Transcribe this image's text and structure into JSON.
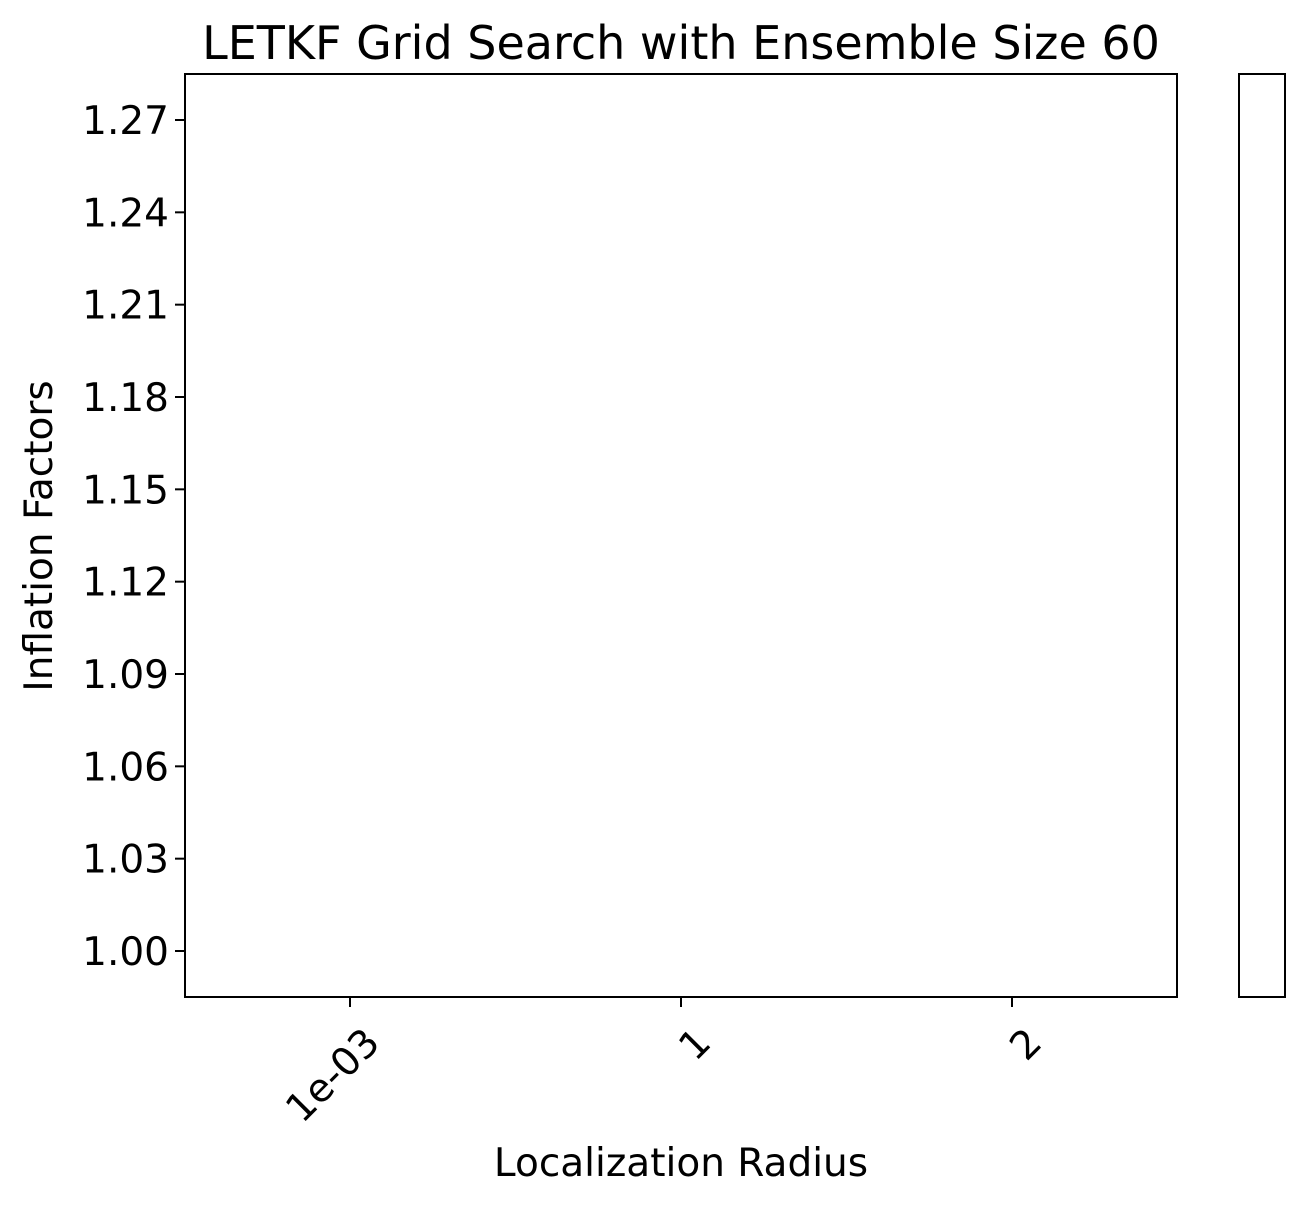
{
  "chart_data": {
    "type": "heatmap",
    "title": "LETKF Grid Search with Ensemble Size 60",
    "xlabel": "Localization Radius",
    "ylabel": "Inflation Factors",
    "x_categories": [
      "1e-03",
      "1",
      "2"
    ],
    "y_categories": [
      "1.00",
      "1.03",
      "1.06",
      "1.09",
      "1.12",
      "1.15",
      "1.18",
      "1.21",
      "1.24",
      "1.27"
    ],
    "values": [],
    "colorbar": {
      "present": true,
      "ticks": []
    },
    "grid": false,
    "x_tick_rotation": "45"
  }
}
